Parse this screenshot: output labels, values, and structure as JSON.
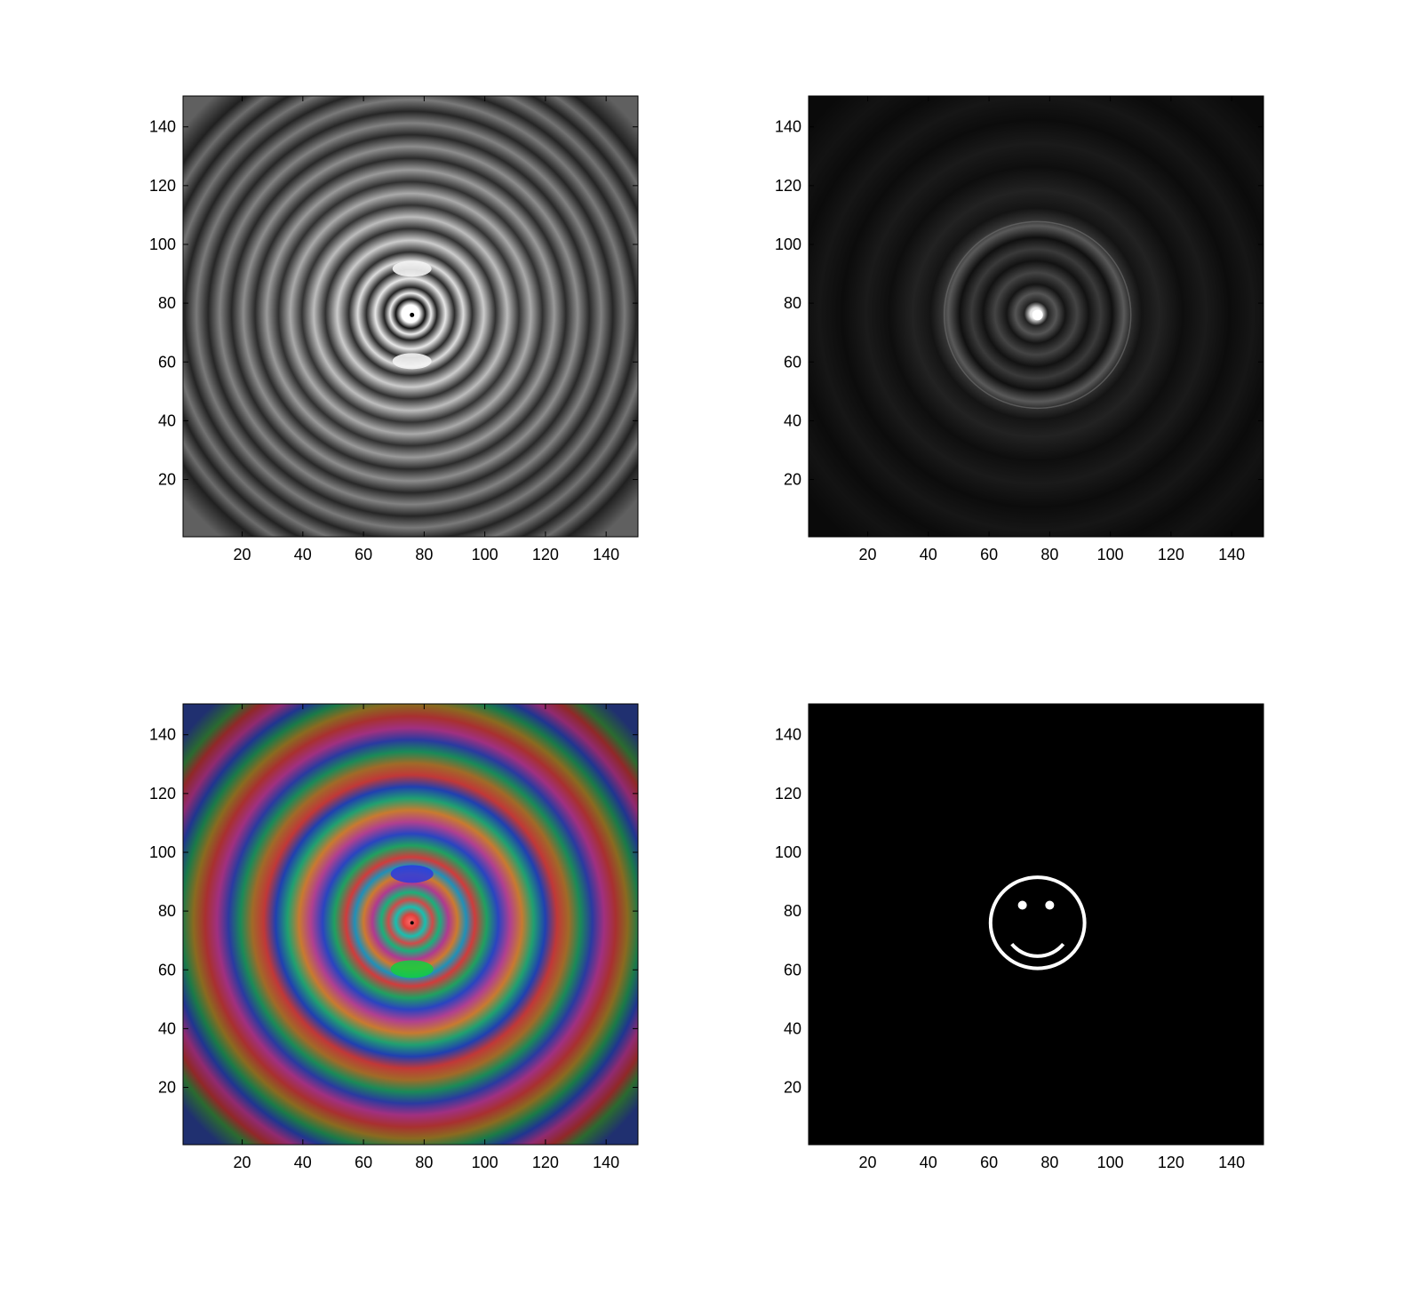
{
  "chart_data": [
    {
      "type": "heatmap",
      "panel": "top-left",
      "colormap": "gray",
      "pattern": "concentric rings with bright center",
      "xlim": [
        1,
        150
      ],
      "ylim": [
        1,
        150
      ],
      "xticks": [
        20,
        40,
        60,
        80,
        100,
        120,
        140
      ],
      "yticks": [
        20,
        40,
        60,
        80,
        100,
        120,
        140
      ],
      "xtick_labels": [
        "20",
        "40",
        "60",
        "80",
        "100",
        "120",
        "140"
      ],
      "ytick_labels": [
        "20",
        "40",
        "60",
        "80",
        "100",
        "120",
        "140"
      ],
      "center": [
        76,
        76
      ],
      "title": "",
      "xlabel": "",
      "ylabel": ""
    },
    {
      "type": "heatmap",
      "panel": "top-right",
      "colormap": "gray",
      "pattern": "dark field with faint concentric rings and bright center",
      "xlim": [
        1,
        150
      ],
      "ylim": [
        1,
        150
      ],
      "xticks": [
        20,
        40,
        60,
        80,
        100,
        120,
        140
      ],
      "yticks": [
        20,
        40,
        60,
        80,
        100,
        120,
        140
      ],
      "xtick_labels": [
        "20",
        "40",
        "60",
        "80",
        "100",
        "120",
        "140"
      ],
      "ytick_labels": [
        "20",
        "40",
        "60",
        "80",
        "100",
        "120",
        "140"
      ],
      "center": [
        76,
        76
      ],
      "title": "",
      "xlabel": "",
      "ylabel": ""
    },
    {
      "type": "heatmap",
      "panel": "bottom-left",
      "colormap": "rgb phase",
      "pattern": "colored concentric rings",
      "xlim": [
        1,
        150
      ],
      "ylim": [
        1,
        150
      ],
      "xticks": [
        20,
        40,
        60,
        80,
        100,
        120,
        140
      ],
      "yticks": [
        20,
        40,
        60,
        80,
        100,
        120,
        140
      ],
      "xtick_labels": [
        "20",
        "40",
        "60",
        "80",
        "100",
        "120",
        "140"
      ],
      "ytick_labels": [
        "20",
        "40",
        "60",
        "80",
        "100",
        "120",
        "140"
      ],
      "center": [
        76,
        76
      ],
      "title": "",
      "xlabel": "",
      "ylabel": ""
    },
    {
      "type": "heatmap",
      "panel": "bottom-right",
      "colormap": "gray",
      "pattern": "smiley face on black",
      "xlim": [
        1,
        150
      ],
      "ylim": [
        1,
        150
      ],
      "xticks": [
        20,
        40,
        60,
        80,
        100,
        120,
        140
      ],
      "yticks": [
        20,
        40,
        60,
        80,
        100,
        120,
        140
      ],
      "xtick_labels": [
        "20",
        "40",
        "60",
        "80",
        "100",
        "120",
        "140"
      ],
      "ytick_labels": [
        "20",
        "40",
        "60",
        "80",
        "100",
        "120",
        "140"
      ],
      "smiley": {
        "center": [
          76,
          76
        ],
        "radius": 15.5,
        "eyes": [
          [
            71,
            82
          ],
          [
            80,
            82
          ]
        ],
        "mouth_center": [
          76,
          76
        ],
        "mouth_radius": 11
      },
      "title": "",
      "xlabel": "",
      "ylabel": ""
    }
  ]
}
